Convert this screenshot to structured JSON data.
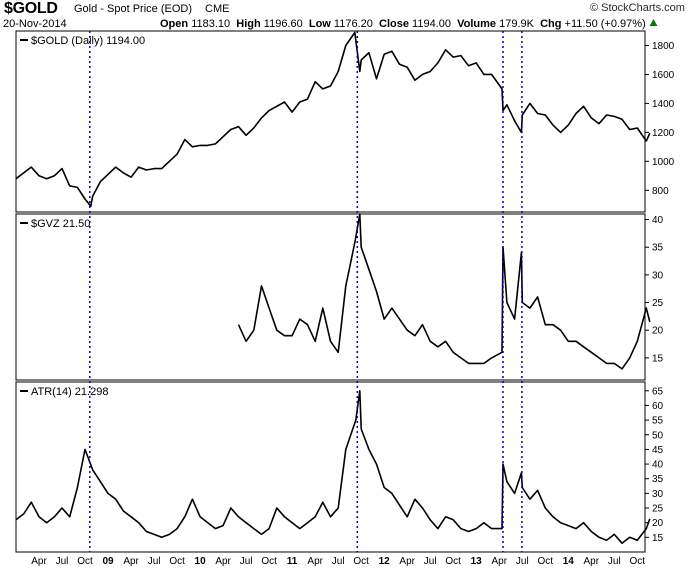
{
  "header": {
    "symbol": "$GOLD",
    "name": "Gold - Spot Price (EOD)",
    "exchange": "CME",
    "date": "20-Nov-2014",
    "open_label": "Open",
    "open": "1183.10",
    "high_label": "High",
    "high": "1196.60",
    "low_label": "Low",
    "low": "1176.20",
    "close_label": "Close",
    "close": "1194.00",
    "volume_label": "Volume",
    "volume": "179.9K",
    "chg_label": "Chg",
    "chg": "+11.50 (+0.97%)",
    "brand": "© StockCharts.com",
    "brand_icon": "triangle-up-icon",
    "chg_color": "#008000"
  },
  "x_axis_labels": [
    "Apr",
    "Jul",
    "Oct",
    "09",
    "Apr",
    "Jul",
    "Oct",
    "10",
    "Apr",
    "Jul",
    "Oct",
    "11",
    "Apr",
    "Jul",
    "Oct",
    "12",
    "Apr",
    "Jul",
    "Oct",
    "13",
    "Apr",
    "Jul",
    "Oct",
    "14",
    "Apr",
    "Jul",
    "Oct"
  ],
  "bold_x_labels": [
    "09",
    "10",
    "11",
    "12",
    "13",
    "14"
  ],
  "marker_dates": [
    "Oct 2008",
    "Sep 2011",
    "Apr 2013",
    "Jun 2013"
  ],
  "marker_color": "#0000cc",
  "line_color": "#000000",
  "chart_data": [
    {
      "type": "line",
      "title": "$GOLD (Daily) 1194.00",
      "x_start": "2008-01",
      "x_end": "2014-11",
      "ylim": [
        650,
        1900
      ],
      "yticks": [
        800,
        1000,
        1200,
        1400,
        1600,
        1800
      ],
      "series": [
        {
          "name": "$GOLD (Daily)",
          "points": [
            [
              "2008-01",
              880
            ],
            [
              "2008-02",
              920
            ],
            [
              "2008-03",
              960
            ],
            [
              "2008-04",
              900
            ],
            [
              "2008-05",
              880
            ],
            [
              "2008-06",
              900
            ],
            [
              "2008-07",
              950
            ],
            [
              "2008-08",
              830
            ],
            [
              "2008-09",
              820
            ],
            [
              "2008-10",
              740
            ],
            [
              "2008-10-24",
              690
            ],
            [
              "2008-11",
              760
            ],
            [
              "2008-12",
              860
            ],
            [
              "2009-01",
              910
            ],
            [
              "2009-02",
              960
            ],
            [
              "2009-03",
              920
            ],
            [
              "2009-04",
              890
            ],
            [
              "2009-05",
              960
            ],
            [
              "2009-06",
              940
            ],
            [
              "2009-07",
              950
            ],
            [
              "2009-08",
              950
            ],
            [
              "2009-09",
              1000
            ],
            [
              "2009-10",
              1050
            ],
            [
              "2009-11",
              1150
            ],
            [
              "2009-12",
              1100
            ],
            [
              "2010-01",
              1110
            ],
            [
              "2010-02",
              1110
            ],
            [
              "2010-03",
              1120
            ],
            [
              "2010-04",
              1170
            ],
            [
              "2010-05",
              1220
            ],
            [
              "2010-06",
              1240
            ],
            [
              "2010-07",
              1180
            ],
            [
              "2010-08",
              1230
            ],
            [
              "2010-09",
              1300
            ],
            [
              "2010-10",
              1350
            ],
            [
              "2010-11",
              1380
            ],
            [
              "2010-12",
              1410
            ],
            [
              "2011-01",
              1340
            ],
            [
              "2011-02",
              1410
            ],
            [
              "2011-03",
              1430
            ],
            [
              "2011-04",
              1550
            ],
            [
              "2011-05",
              1500
            ],
            [
              "2011-06",
              1520
            ],
            [
              "2011-07",
              1620
            ],
            [
              "2011-08",
              1800
            ],
            [
              "2011-09-06",
              1890
            ],
            [
              "2011-09-26",
              1620
            ],
            [
              "2011-10",
              1700
            ],
            [
              "2011-11",
              1750
            ],
            [
              "2011-12",
              1570
            ],
            [
              "2012-01",
              1740
            ],
            [
              "2012-02",
              1760
            ],
            [
              "2012-03",
              1670
            ],
            [
              "2012-04",
              1650
            ],
            [
              "2012-05",
              1560
            ],
            [
              "2012-06",
              1600
            ],
            [
              "2012-07",
              1620
            ],
            [
              "2012-08",
              1680
            ],
            [
              "2012-09",
              1770
            ],
            [
              "2012-10",
              1720
            ],
            [
              "2012-11",
              1730
            ],
            [
              "2012-12",
              1660
            ],
            [
              "2013-01",
              1680
            ],
            [
              "2013-02",
              1600
            ],
            [
              "2013-03",
              1600
            ],
            [
              "2013-04-12",
              1500
            ],
            [
              "2013-04-16",
              1350
            ],
            [
              "2013-05",
              1390
            ],
            [
              "2013-06",
              1280
            ],
            [
              "2013-06-28",
              1200
            ],
            [
              "2013-07",
              1320
            ],
            [
              "2013-08",
              1400
            ],
            [
              "2013-09",
              1330
            ],
            [
              "2013-10",
              1320
            ],
            [
              "2013-11",
              1250
            ],
            [
              "2013-12",
              1200
            ],
            [
              "2014-01",
              1250
            ],
            [
              "2014-02",
              1330
            ],
            [
              "2014-03",
              1380
            ],
            [
              "2014-04",
              1300
            ],
            [
              "2014-05",
              1260
            ],
            [
              "2014-06",
              1320
            ],
            [
              "2014-07",
              1310
            ],
            [
              "2014-08",
              1290
            ],
            [
              "2014-09",
              1220
            ],
            [
              "2014-10",
              1230
            ],
            [
              "2014-11-06",
              1140
            ],
            [
              "2014-11-20",
              1194
            ]
          ]
        }
      ]
    },
    {
      "type": "line",
      "title": "$GVZ 21.50",
      "x_start": "2008-01",
      "x_end": "2014-11",
      "ylim": [
        11,
        41
      ],
      "yticks": [
        15,
        20,
        25,
        30,
        35,
        40
      ],
      "series": [
        {
          "name": "$GVZ",
          "points": [
            [
              "2010-06",
              21
            ],
            [
              "2010-07",
              18
            ],
            [
              "2010-08",
              20
            ],
            [
              "2010-09",
              28
            ],
            [
              "2010-10",
              24
            ],
            [
              "2010-11",
              20
            ],
            [
              "2010-12",
              19
            ],
            [
              "2011-01",
              19
            ],
            [
              "2011-02",
              22
            ],
            [
              "2011-03",
              21
            ],
            [
              "2011-04",
              18
            ],
            [
              "2011-05",
              24
            ],
            [
              "2011-06",
              18
            ],
            [
              "2011-07",
              16
            ],
            [
              "2011-08",
              28
            ],
            [
              "2011-09-07",
              36
            ],
            [
              "2011-09-26",
              41
            ],
            [
              "2011-10",
              35
            ],
            [
              "2011-11",
              31
            ],
            [
              "2011-12",
              27
            ],
            [
              "2012-01",
              22
            ],
            [
              "2012-02",
              24
            ],
            [
              "2012-03",
              22
            ],
            [
              "2012-04",
              20
            ],
            [
              "2012-05",
              19
            ],
            [
              "2012-06",
              21
            ],
            [
              "2012-07",
              18
            ],
            [
              "2012-08",
              17
            ],
            [
              "2012-09",
              18
            ],
            [
              "2012-10",
              16
            ],
            [
              "2012-11",
              15
            ],
            [
              "2012-12",
              14
            ],
            [
              "2013-01",
              14
            ],
            [
              "2013-02",
              14
            ],
            [
              "2013-03",
              15
            ],
            [
              "2013-04-12",
              16
            ],
            [
              "2013-04-16",
              35
            ],
            [
              "2013-05",
              25
            ],
            [
              "2013-06",
              22
            ],
            [
              "2013-06-28",
              34
            ],
            [
              "2013-07",
              25
            ],
            [
              "2013-08",
              24
            ],
            [
              "2013-09",
              26
            ],
            [
              "2013-10",
              21
            ],
            [
              "2013-11",
              21
            ],
            [
              "2013-12",
              20
            ],
            [
              "2014-01",
              18
            ],
            [
              "2014-02",
              18
            ],
            [
              "2014-03",
              17
            ],
            [
              "2014-04",
              16
            ],
            [
              "2014-05",
              15
            ],
            [
              "2014-06",
              14
            ],
            [
              "2014-07",
              14
            ],
            [
              "2014-08",
              13
            ],
            [
              "2014-09",
              15
            ],
            [
              "2014-10",
              18
            ],
            [
              "2014-11-06",
              24
            ],
            [
              "2014-11-20",
              21.5
            ]
          ]
        }
      ]
    },
    {
      "type": "line",
      "title": "ATR(14) 21.298",
      "x_start": "2008-01",
      "x_end": "2014-11",
      "ylim": [
        10,
        68
      ],
      "yticks": [
        15,
        20,
        25,
        30,
        35,
        40,
        45,
        50,
        55,
        60,
        65
      ],
      "series": [
        {
          "name": "ATR(14)",
          "points": [
            [
              "2008-01",
              21
            ],
            [
              "2008-02",
              23
            ],
            [
              "2008-03",
              27
            ],
            [
              "2008-04",
              22
            ],
            [
              "2008-05",
              20
            ],
            [
              "2008-06",
              22
            ],
            [
              "2008-07",
              25
            ],
            [
              "2008-08",
              22
            ],
            [
              "2008-09",
              32
            ],
            [
              "2008-10",
              45
            ],
            [
              "2008-11",
              38
            ],
            [
              "2008-12",
              34
            ],
            [
              "2009-01",
              30
            ],
            [
              "2009-02",
              28
            ],
            [
              "2009-03",
              24
            ],
            [
              "2009-04",
              22
            ],
            [
              "2009-05",
              20
            ],
            [
              "2009-06",
              17
            ],
            [
              "2009-07",
              16
            ],
            [
              "2009-08",
              15
            ],
            [
              "2009-09",
              16
            ],
            [
              "2009-10",
              18
            ],
            [
              "2009-11",
              22
            ],
            [
              "2009-12",
              28
            ],
            [
              "2010-01",
              22
            ],
            [
              "2010-02",
              20
            ],
            [
              "2010-03",
              18
            ],
            [
              "2010-04",
              19
            ],
            [
              "2010-05",
              25
            ],
            [
              "2010-06",
              22
            ],
            [
              "2010-07",
              20
            ],
            [
              "2010-08",
              18
            ],
            [
              "2010-09",
              16
            ],
            [
              "2010-10",
              18
            ],
            [
              "2010-11",
              25
            ],
            [
              "2010-12",
              22
            ],
            [
              "2011-01",
              20
            ],
            [
              "2011-02",
              18
            ],
            [
              "2011-03",
              20
            ],
            [
              "2011-04",
              22
            ],
            [
              "2011-05",
              27
            ],
            [
              "2011-06",
              22
            ],
            [
              "2011-07",
              25
            ],
            [
              "2011-08",
              45
            ],
            [
              "2011-09-10",
              55
            ],
            [
              "2011-09-26",
              65
            ],
            [
              "2011-10",
              52
            ],
            [
              "2011-11",
              45
            ],
            [
              "2011-12",
              40
            ],
            [
              "2012-01",
              32
            ],
            [
              "2012-02",
              30
            ],
            [
              "2012-03",
              26
            ],
            [
              "2012-04",
              22
            ],
            [
              "2012-05",
              28
            ],
            [
              "2012-06",
              25
            ],
            [
              "2012-07",
              21
            ],
            [
              "2012-08",
              18
            ],
            [
              "2012-09",
              22
            ],
            [
              "2012-10",
              21
            ],
            [
              "2012-11",
              18
            ],
            [
              "2012-12",
              17
            ],
            [
              "2013-01",
              18
            ],
            [
              "2013-02",
              20
            ],
            [
              "2013-03",
              18
            ],
            [
              "2013-04-12",
              18
            ],
            [
              "2013-04-16",
              40
            ],
            [
              "2013-05",
              34
            ],
            [
              "2013-06",
              30
            ],
            [
              "2013-06-28",
              37
            ],
            [
              "2013-07",
              32
            ],
            [
              "2013-08",
              28
            ],
            [
              "2013-09",
              31
            ],
            [
              "2013-10",
              25
            ],
            [
              "2013-11",
              22
            ],
            [
              "2013-12",
              20
            ],
            [
              "2014-01",
              19
            ],
            [
              "2014-02",
              18
            ],
            [
              "2014-03",
              20
            ],
            [
              "2014-04",
              17
            ],
            [
              "2014-05",
              15
            ],
            [
              "2014-06",
              14
            ],
            [
              "2014-07",
              16
            ],
            [
              "2014-08",
              13
            ],
            [
              "2014-09",
              15
            ],
            [
              "2014-10",
              14
            ],
            [
              "2014-11-06",
              18
            ],
            [
              "2014-11-20",
              21.298
            ]
          ]
        }
      ]
    }
  ]
}
